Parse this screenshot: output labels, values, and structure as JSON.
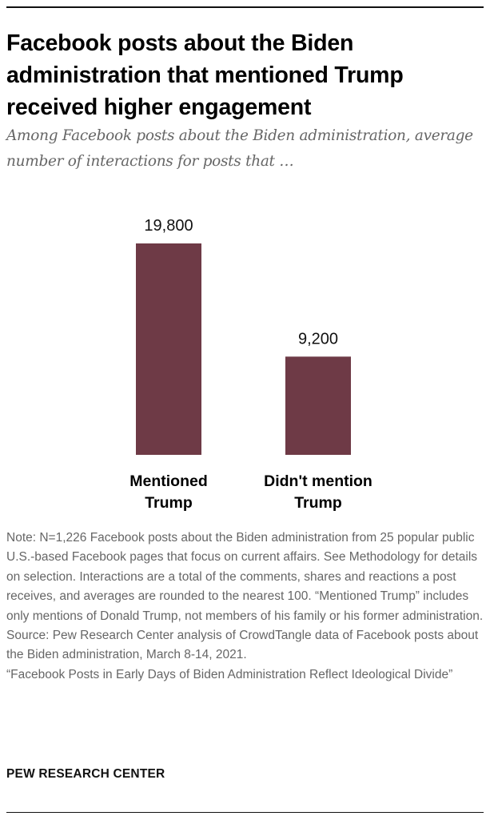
{
  "header": {
    "title": "Facebook posts about the Biden administration that mentioned Trump received higher engagement",
    "subtitle": "Among Facebook posts about the Biden administration, average number of interactions for posts that …"
  },
  "chart_data": {
    "type": "bar",
    "categories": [
      {
        "lines": [
          "Mentioned",
          "Trump"
        ]
      },
      {
        "lines": [
          "Didn't mention",
          "Trump"
        ]
      }
    ],
    "values": [
      19800,
      9200
    ],
    "value_labels": [
      "19,800",
      "9,200"
    ],
    "ylim": [
      0,
      19800
    ],
    "bar_color": "#6e3a46",
    "xlabel": "",
    "ylabel": ""
  },
  "footer": {
    "note": "Note: N=1,226 Facebook posts about the Biden administration from 25 popular public U.S.-based Facebook pages that focus on current affairs. See Methodology for details on selection. Interactions are a total of the comments, shares and reactions a post receives, and averages are rounded to the nearest 100. “Mentioned Trump” includes only mentions of Donald Trump, not members of his family or his former administration.",
    "source": "Source: Pew Research Center analysis of CrowdTangle data of Facebook posts about the Biden administration, March 8-14, 2021.",
    "report": "“Facebook Posts in Early Days of Biden Administration Reflect Ideological Divide”",
    "brand": "PEW RESEARCH CENTER"
  }
}
